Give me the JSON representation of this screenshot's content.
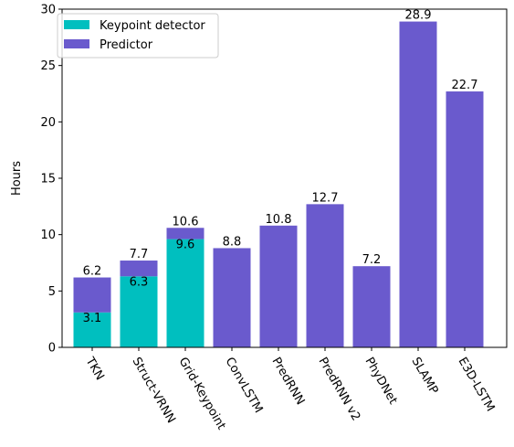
{
  "chart_data": {
    "type": "bar",
    "stacked": true,
    "categories": [
      "TKN",
      "Struct-VRNN",
      "Grid-Keypoint",
      "ConvLSTM",
      "PredRNN",
      "PredRNN v2",
      "PhyDNet",
      "SLAMP",
      "E3D-LSTM"
    ],
    "series": [
      {
        "name": "Keypoint detector",
        "color": "#00bfbf",
        "values": [
          3.1,
          6.3,
          9.6,
          0,
          0,
          0,
          0,
          0,
          0
        ]
      },
      {
        "name": "Predictor",
        "color": "#6a5acd",
        "values": [
          3.1,
          1.4,
          1.0,
          8.8,
          10.8,
          12.7,
          7.2,
          28.9,
          22.7
        ]
      }
    ],
    "totals": [
      6.2,
      7.7,
      10.6,
      8.8,
      10.8,
      12.7,
      7.2,
      28.9,
      22.7
    ],
    "keypoint_labels": [
      "3.1",
      "6.3",
      "9.6",
      "",
      "",
      "",
      "",
      "",
      ""
    ],
    "total_labels": [
      "6.2",
      "7.7",
      "10.6",
      "8.8",
      "10.8",
      "12.7",
      "7.2",
      "28.9",
      "22.7"
    ],
    "ylabel": "Hours",
    "xlabel": "",
    "ylim": [
      0,
      30
    ],
    "yticks": [
      0,
      5,
      10,
      15,
      20,
      25,
      30
    ],
    "legend_position": "top-left",
    "grid": false,
    "tick_label_rotation": "-60 degrees"
  }
}
